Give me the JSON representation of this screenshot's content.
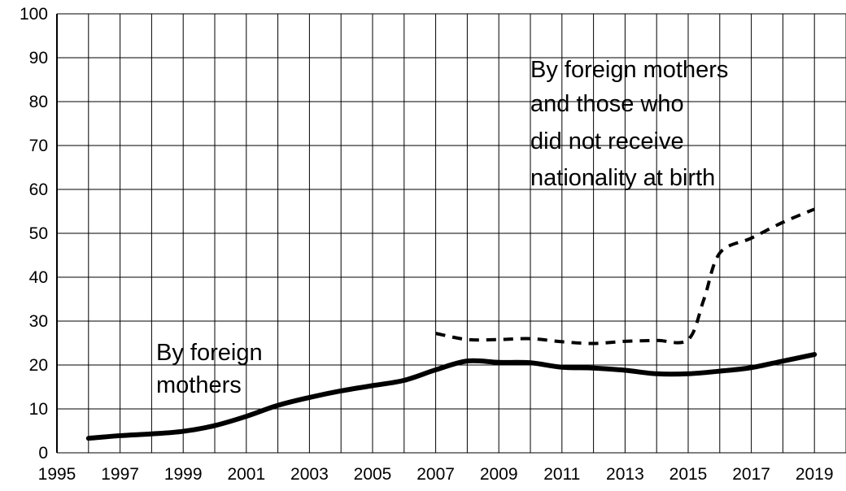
{
  "chart_data": {
    "type": "line",
    "title": "",
    "xlabel": "",
    "ylabel": "",
    "xlim": [
      1995,
      2020
    ],
    "ylim": [
      0,
      100
    ],
    "grid": true,
    "x_ticks": [
      "1995",
      "1997",
      "1999",
      "2001",
      "2003",
      "2005",
      "2007",
      "2009",
      "2011",
      "2013",
      "2015",
      "2017",
      "2019"
    ],
    "y_ticks": [
      "0",
      "10",
      "20",
      "30",
      "40",
      "50",
      "60",
      "70",
      "80",
      "90",
      "100"
    ],
    "series": [
      {
        "style": "solid",
        "color": "#000000",
        "points": [
          [
            1996,
            3.3
          ],
          [
            1997,
            3.9
          ],
          [
            1998,
            4.3
          ],
          [
            1999,
            4.9
          ],
          [
            2000,
            6.2
          ],
          [
            2001,
            8.3
          ],
          [
            2002,
            10.8
          ],
          [
            2003,
            12.6
          ],
          [
            2004,
            14.1
          ],
          [
            2005,
            15.3
          ],
          [
            2006,
            16.5
          ],
          [
            2007,
            18.9
          ],
          [
            2008,
            20.9
          ],
          [
            2009,
            20.6
          ],
          [
            2010,
            20.5
          ],
          [
            2011,
            19.5
          ],
          [
            2012,
            19.3
          ],
          [
            2013,
            18.8
          ],
          [
            2014,
            18.0
          ],
          [
            2015,
            18.0
          ],
          [
            2016,
            18.6
          ],
          [
            2017,
            19.4
          ],
          [
            2018,
            20.9
          ],
          [
            2019,
            22.4
          ]
        ]
      },
      {
        "style": "dashed",
        "color": "#000000",
        "points": [
          [
            2007,
            27.2
          ],
          [
            2008,
            25.8
          ],
          [
            2009,
            25.8
          ],
          [
            2010,
            26.0
          ],
          [
            2011,
            25.3
          ],
          [
            2012,
            24.9
          ],
          [
            2013,
            25.4
          ],
          [
            2014,
            25.6
          ],
          [
            2015,
            25.8
          ],
          [
            2015.5,
            35.0
          ],
          [
            2016,
            45.5
          ],
          [
            2017,
            48.9
          ],
          [
            2018,
            52.5
          ],
          [
            2019,
            55.5
          ]
        ]
      }
    ],
    "annotations": [
      {
        "lines": [
          "By foreign mothers",
          "and those who",
          "did not receive",
          "nationality at birth"
        ]
      },
      {
        "lines": [
          "By foreign",
          "mothers"
        ]
      }
    ]
  }
}
